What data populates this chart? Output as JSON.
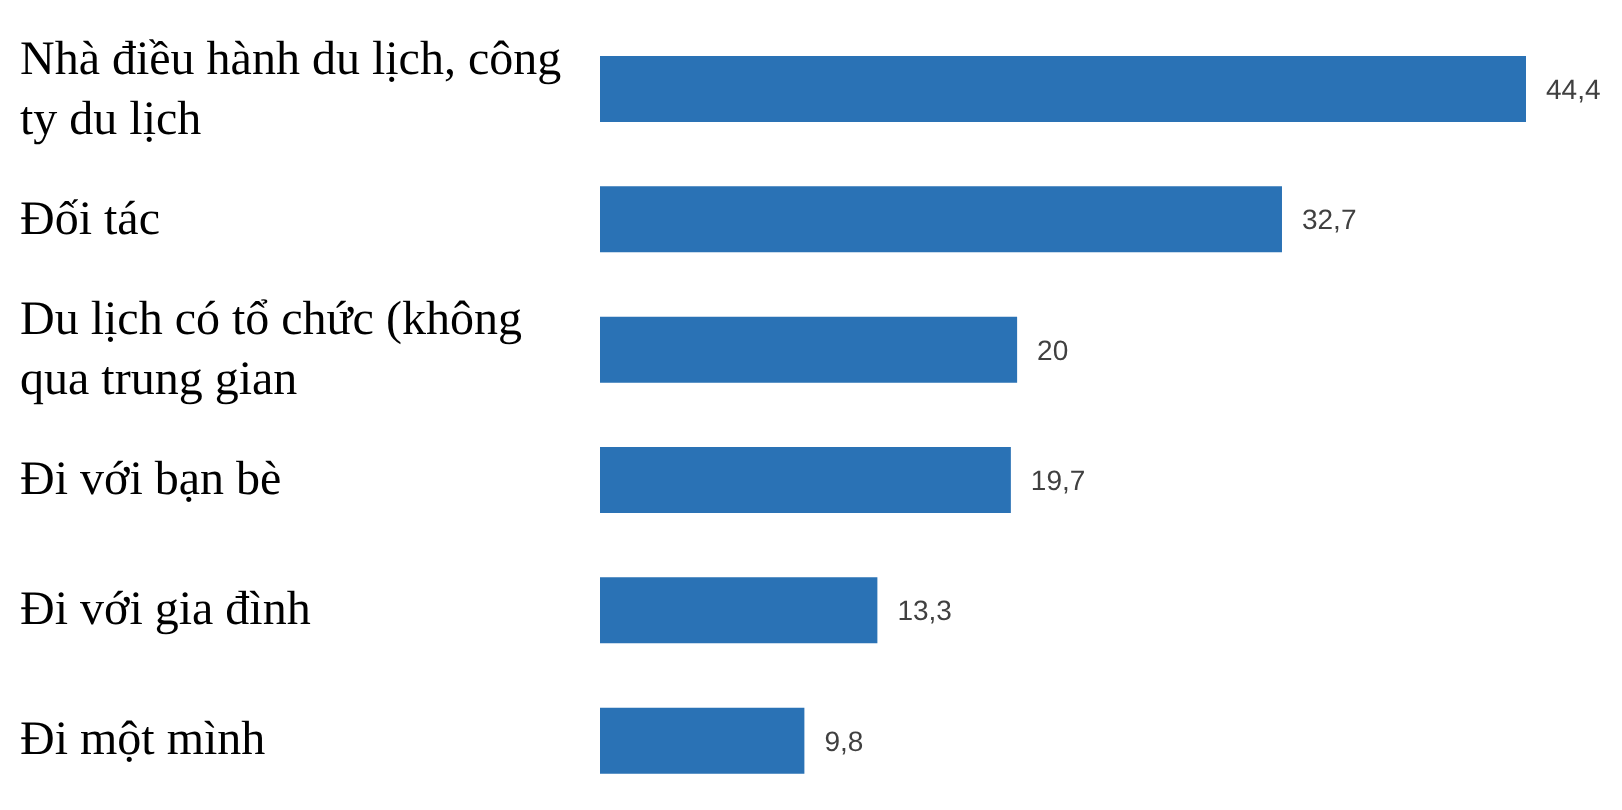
{
  "chart_data": {
    "type": "bar",
    "orientation": "horizontal",
    "categories": [
      "Nhà điều hành du lịch, công ty du lịch",
      "Đối tác",
      "Du lịch có tổ chức (không qua trung gian",
      "Đi với bạn bè",
      "Đi với gia đình",
      "Đi một mình"
    ],
    "values": [
      44.4,
      32.7,
      20,
      19.7,
      13.3,
      9.8
    ],
    "value_labels": [
      "44,4",
      "32,7",
      "20",
      "19,7",
      "13,3",
      "9,8"
    ],
    "color": "#2a72b5"
  }
}
